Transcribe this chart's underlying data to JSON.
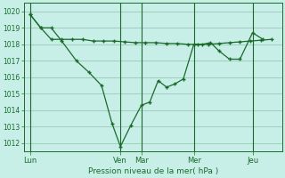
{
  "background_color": "#c8eee8",
  "plot_bg_color": "#c8eee8",
  "grid_color": "#a0ccbb",
  "line_color": "#1a6b2a",
  "marker_color": "#1a6b2a",
  "xlabel": "Pression niveau de la mer( hPa )",
  "ylim": [
    1011.5,
    1020.5
  ],
  "yticks": [
    1012,
    1013,
    1014,
    1015,
    1016,
    1017,
    1018,
    1019,
    1020
  ],
  "day_labels": [
    "Lun",
    "Ven",
    "Mar",
    "Mer",
    "Jeu"
  ],
  "xlim": [
    0,
    12
  ],
  "day_x": [
    0,
    4.3,
    5.3,
    7.8,
    10.6
  ],
  "series1_x": [
    0.0,
    0.5,
    1.0,
    1.5,
    2.2,
    2.8,
    3.4,
    3.9,
    4.3,
    4.8,
    5.3,
    5.7,
    6.1,
    6.5,
    6.9,
    7.3,
    7.8,
    8.2,
    8.6,
    9.0,
    9.5,
    10.0,
    10.6,
    11.1
  ],
  "series1_y": [
    1019.8,
    1019.0,
    1019.0,
    1018.2,
    1017.0,
    1016.3,
    1015.5,
    1013.2,
    1011.8,
    1013.1,
    1014.3,
    1014.5,
    1015.8,
    1015.4,
    1015.6,
    1015.9,
    1018.0,
    1018.0,
    1018.1,
    1017.6,
    1017.1,
    1017.1,
    1018.7,
    1018.3
  ],
  "series2_x": [
    0.0,
    0.5,
    1.0,
    1.5,
    2.0,
    2.5,
    3.0,
    3.5,
    4.0,
    4.5,
    5.0,
    5.5,
    6.0,
    6.5,
    7.0,
    7.5,
    8.0,
    8.5,
    9.0,
    9.5,
    10.0,
    10.5,
    11.0,
    11.5
  ],
  "series2_y": [
    1019.8,
    1019.0,
    1018.3,
    1018.3,
    1018.3,
    1018.3,
    1018.2,
    1018.2,
    1018.2,
    1018.15,
    1018.1,
    1018.1,
    1018.1,
    1018.05,
    1018.05,
    1018.0,
    1018.0,
    1018.0,
    1018.05,
    1018.1,
    1018.15,
    1018.2,
    1018.25,
    1018.3
  ],
  "vline_x": [
    0.0,
    4.3,
    5.3,
    7.8,
    10.6
  ]
}
